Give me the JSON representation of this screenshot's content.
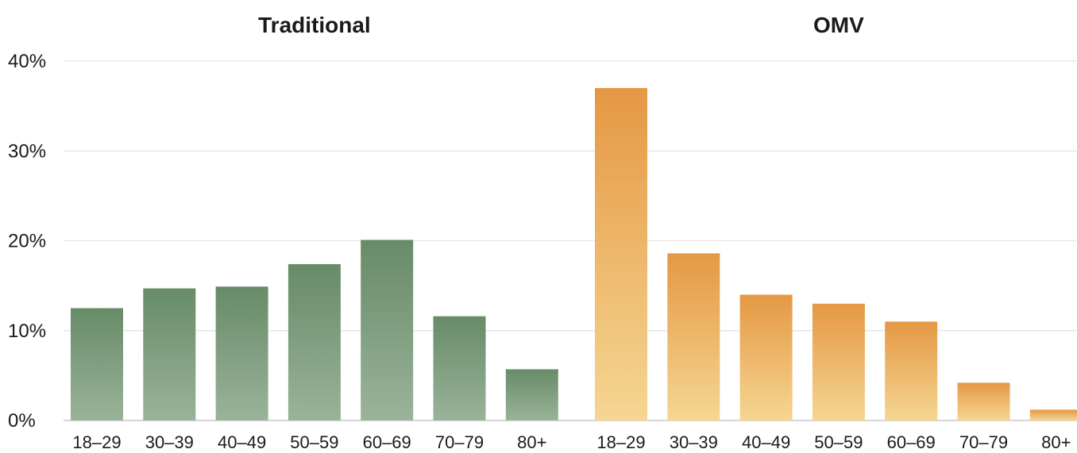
{
  "chart_data": {
    "type": "bar",
    "y_tick_labels": [
      "0%",
      "10%",
      "20%",
      "30%",
      "40%"
    ],
    "y_ticks": [
      0,
      10,
      20,
      30,
      40
    ],
    "ylim": [
      0,
      40
    ],
    "grid": true,
    "panels": [
      {
        "title": "Traditional",
        "categories": [
          "18–29",
          "30–39",
          "40–49",
          "50–59",
          "60–69",
          "70–79",
          "80+"
        ],
        "values": [
          12.5,
          14.7,
          14.9,
          17.4,
          20.1,
          11.6,
          5.7
        ],
        "color_top": "#678b67",
        "color_bottom": "#9ab39a"
      },
      {
        "title": "OMV",
        "categories": [
          "18–29",
          "30–39",
          "40–49",
          "50–59",
          "60–69",
          "70–79",
          "80+"
        ],
        "values": [
          37.0,
          18.6,
          14.0,
          13.0,
          11.0,
          4.2,
          1.2
        ],
        "color_top": "#e59844",
        "color_bottom": "#f5d692"
      }
    ]
  }
}
